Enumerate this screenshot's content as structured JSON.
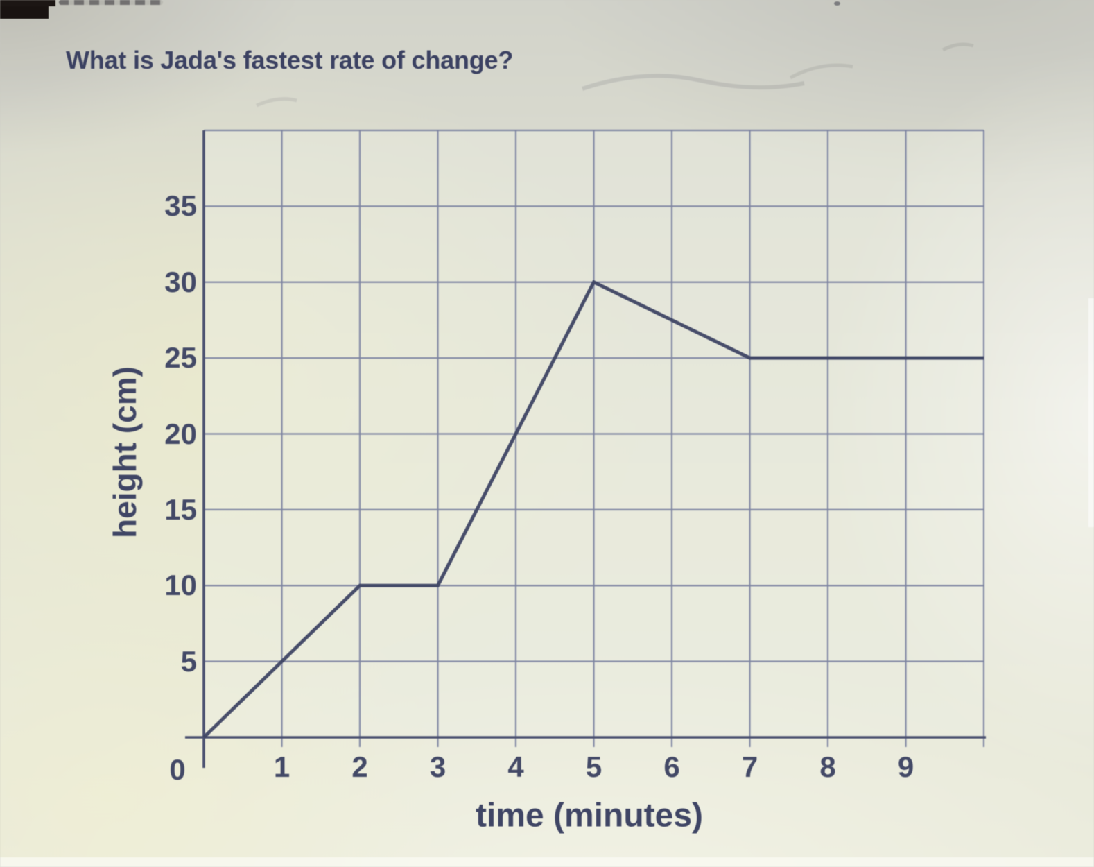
{
  "question": {
    "text": "What is Jada's fastest rate of change?"
  },
  "chart_data": {
    "type": "line",
    "title": "",
    "xlabel": "time (minutes)",
    "ylabel": "height (cm)",
    "xlim": [
      0,
      10
    ],
    "ylim": [
      0,
      40
    ],
    "x_ticks": [
      0,
      1,
      2,
      3,
      4,
      5,
      6,
      7,
      8,
      9
    ],
    "y_ticks": [
      5,
      10,
      15,
      20,
      25,
      30,
      35
    ],
    "x_gridlines": [
      0,
      1,
      2,
      3,
      4,
      5,
      6,
      7,
      8,
      9,
      10
    ],
    "y_gridlines": [
      0,
      5,
      10,
      15,
      20,
      25,
      30,
      35,
      40
    ],
    "grid": true,
    "legend": false,
    "series": [
      {
        "name": "height",
        "points": [
          [
            0,
            0
          ],
          [
            2,
            10
          ],
          [
            3,
            10
          ],
          [
            5,
            30
          ],
          [
            7,
            25
          ],
          [
            10,
            25
          ]
        ]
      }
    ]
  },
  "colors": {
    "ink": "#3a4061",
    "tick_ink": "#424866",
    "grid": "#7d84a2",
    "axis": "#4a5070",
    "line": "#3d4363",
    "paper": "#e8e9d9"
  }
}
